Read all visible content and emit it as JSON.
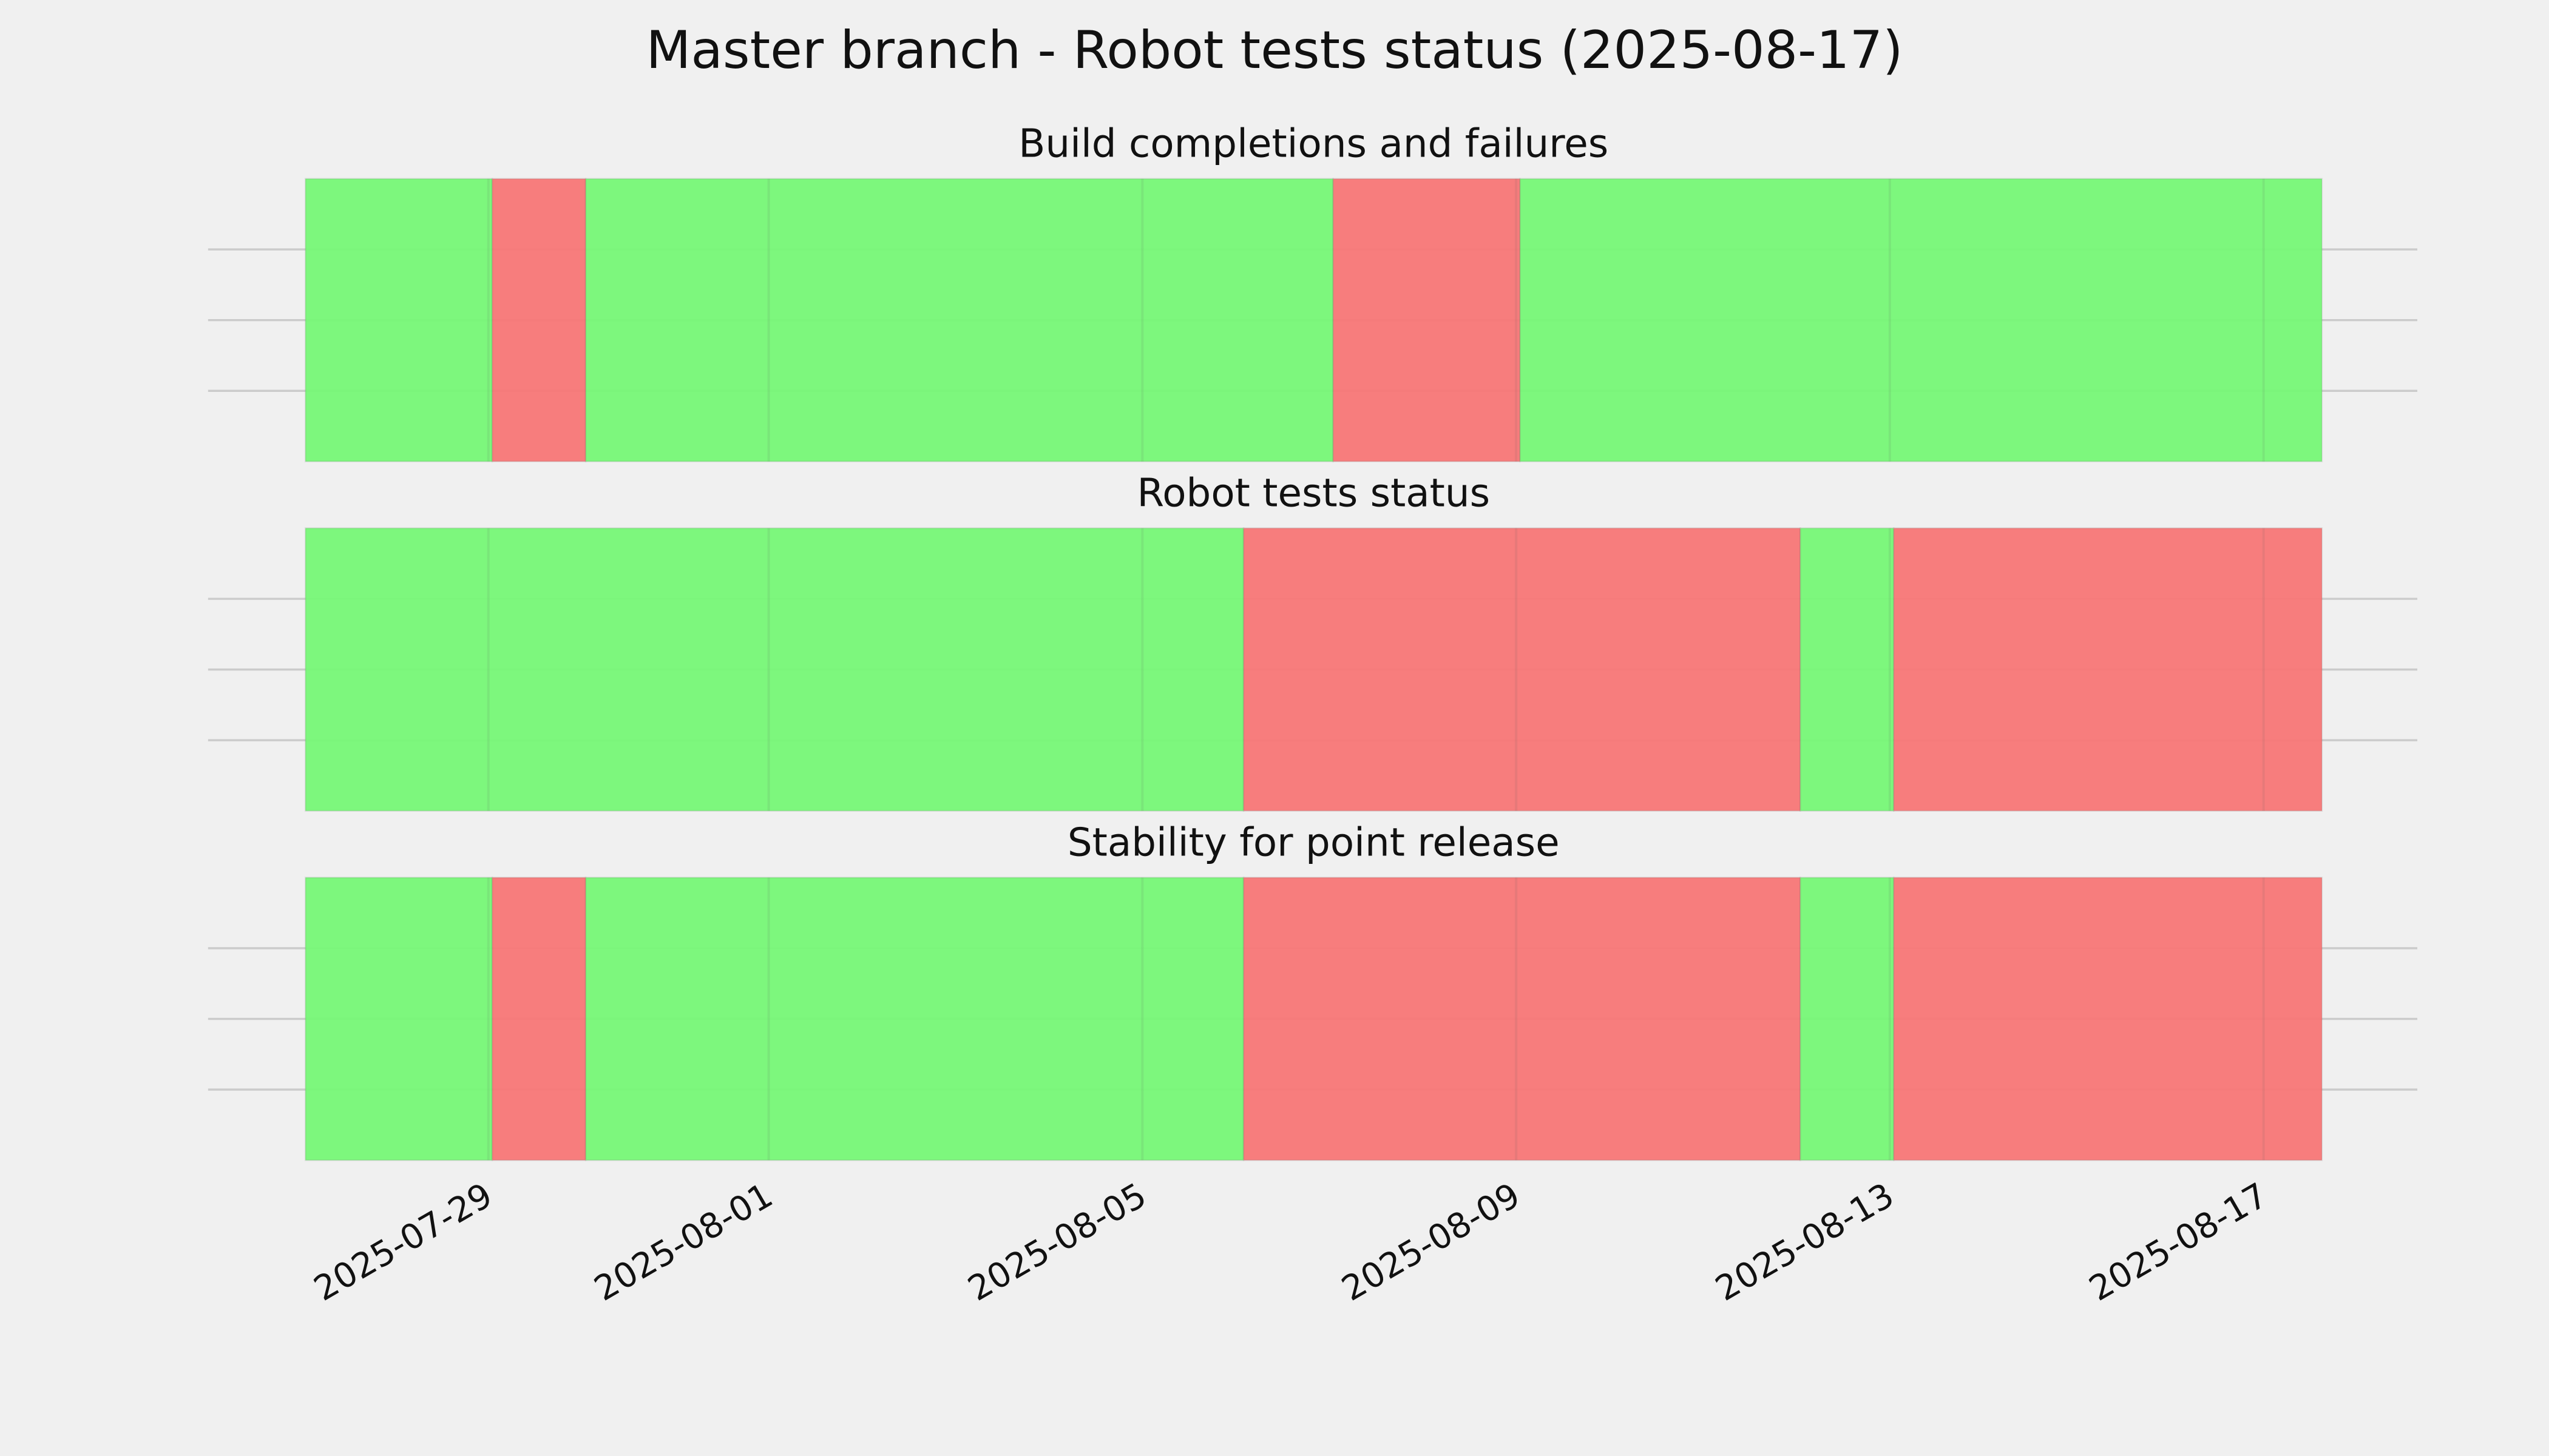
{
  "chart_data": {
    "type": "timeline",
    "title": "Master branch - Robot tests status (2025-08-17)",
    "xlim": [
      "2025-07-26T00:00",
      "2025-08-18T15:30"
    ],
    "xticks": [
      "2025-07-29",
      "2025-08-01",
      "2025-08-05",
      "2025-08-09",
      "2025-08-13",
      "2025-08-17"
    ],
    "ylim": [
      0,
      1
    ],
    "yticks": [
      0.25,
      0.5,
      0.75
    ],
    "grid": true,
    "panels": [
      {
        "title": "Build completions and failures",
        "segments": [
          {
            "start": "2025-07-27T01:00",
            "end": "2025-07-29T01:00",
            "color": "#76f776"
          },
          {
            "start": "2025-07-29T01:00",
            "end": "2025-07-30T01:00",
            "color": "#f77676"
          },
          {
            "start": "2025-07-30T01:00",
            "end": "2025-08-07T01:00",
            "color": "#76f776"
          },
          {
            "start": "2025-08-07T01:00",
            "end": "2025-08-09T01:00",
            "color": "#f77676"
          },
          {
            "start": "2025-08-09T01:00",
            "end": "2025-08-17T15:00",
            "color": "#76f776"
          }
        ]
      },
      {
        "title": "Robot tests status",
        "segments": [
          {
            "start": "2025-07-27T01:00",
            "end": "2025-08-06T02:00",
            "color": "#76f776"
          },
          {
            "start": "2025-08-06T02:00",
            "end": "2025-08-12T01:00",
            "color": "#f77676"
          },
          {
            "start": "2025-08-12T01:00",
            "end": "2025-08-13T01:00",
            "color": "#76f776"
          },
          {
            "start": "2025-08-13T01:00",
            "end": "2025-08-17T15:00",
            "color": "#f77676"
          }
        ]
      },
      {
        "title": "Stability for point release",
        "segments": [
          {
            "start": "2025-07-27T01:00",
            "end": "2025-07-29T01:00",
            "color": "#76f776"
          },
          {
            "start": "2025-07-29T01:00",
            "end": "2025-07-30T01:00",
            "color": "#f77676"
          },
          {
            "start": "2025-07-30T01:00",
            "end": "2025-08-06T02:00",
            "color": "#76f776"
          },
          {
            "start": "2025-08-06T02:00",
            "end": "2025-08-12T01:00",
            "color": "#f77676"
          },
          {
            "start": "2025-08-12T01:00",
            "end": "2025-08-13T01:00",
            "color": "#76f776"
          },
          {
            "start": "2025-08-13T01:00",
            "end": "2025-08-17T15:00",
            "color": "#f77676"
          }
        ]
      }
    ]
  }
}
